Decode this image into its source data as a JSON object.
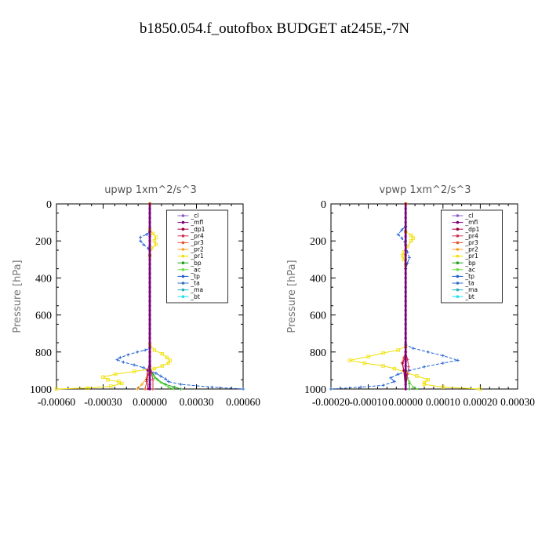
{
  "title": "b1850.054.f_outofbox  BUDGET at245E,-7N",
  "legend_entries": [
    "_cl",
    "_mfl",
    "_dp1",
    "_pr4",
    "_pr3",
    "_pr2",
    "_pr1",
    "_bp",
    "_ac",
    "_tp",
    "_ta",
    "_ma",
    "_bt"
  ],
  "legend_colors": [
    "#8a5cc8",
    "#7a007a",
    "#a00040",
    "#d03050",
    "#e85030",
    "#ffa020",
    "#f0e000",
    "#20a020",
    "#60e040",
    "#2060d0",
    "#3070c0",
    "#20b0c0",
    "#20e0f0"
  ],
  "chart_data": [
    {
      "type": "line",
      "title": "upwp   1xm^2/s^3",
      "ylabel": "Pressure [hPa]",
      "xlabel": "",
      "xlim": [
        -0.0006,
        0.0006
      ],
      "ylim": [
        1000,
        0
      ],
      "xticks": [
        "-0.00060",
        "-0.00030",
        "0.00000",
        "0.00030",
        "0.00060"
      ],
      "yticks": [
        "0",
        "200",
        "400",
        "600",
        "800",
        "1000"
      ],
      "xtick_values": [
        -0.0006,
        -0.0003,
        0,
        0.0003,
        0.0006
      ],
      "ytick_values": [
        0,
        200,
        400,
        600,
        800,
        1000
      ],
      "legend_position": "top-right",
      "series": [
        {
          "name": "_pr1",
          "color": "#f0e000",
          "marker": "square",
          "points": [
            [
              0,
              0
            ],
            [
              0,
              140
            ],
            [
              2e-05,
              160
            ],
            [
              4e-05,
              180
            ],
            [
              3e-05,
              200
            ],
            [
              4e-05,
              220
            ],
            [
              1e-05,
              240
            ],
            [
              0,
              280
            ],
            [
              0,
              760
            ],
            [
              3e-05,
              790
            ],
            [
              8e-05,
              810
            ],
            [
              0.00011,
              830
            ],
            [
              0.00013,
              845
            ],
            [
              0.00012,
              860
            ],
            [
              8e-05,
              875
            ],
            [
              3e-05,
              890
            ],
            [
              -0.0001,
              905
            ],
            [
              -0.00022,
              920
            ],
            [
              -0.0003,
              935
            ],
            [
              -0.00027,
              950
            ],
            [
              -0.0002,
              960
            ],
            [
              -0.00018,
              970
            ],
            [
              -0.00025,
              985
            ],
            [
              -0.0004,
              995
            ],
            [
              -0.0006,
              1000
            ]
          ]
        },
        {
          "name": "_tp",
          "color": "#2060d0",
          "marker": "plus",
          "points": [
            [
              0,
              0
            ],
            [
              0,
              150
            ],
            [
              -2e-05,
              165
            ],
            [
              -6e-05,
              180
            ],
            [
              -6e-05,
              200
            ],
            [
              -4e-05,
              220
            ],
            [
              -1e-05,
              240
            ],
            [
              0,
              280
            ],
            [
              0,
              780
            ],
            [
              -3e-05,
              790
            ],
            [
              -8e-05,
              800
            ],
            [
              -0.00014,
              815
            ],
            [
              -0.00019,
              830
            ],
            [
              -0.00021,
              842
            ],
            [
              -0.00017,
              855
            ],
            [
              -0.0001,
              870
            ],
            [
              -4e-05,
              885
            ],
            [
              0,
              900
            ],
            [
              4e-05,
              915
            ],
            [
              7e-05,
              930
            ],
            [
              0.0001,
              945
            ],
            [
              0.00012,
              960
            ],
            [
              0.0002,
              975
            ],
            [
              0.0004,
              990
            ],
            [
              0.0006,
              1000
            ]
          ]
        },
        {
          "name": "_bp",
          "color": "#20a020",
          "marker": "plus",
          "points": [
            [
              0,
              0
            ],
            [
              0,
              880
            ],
            [
              2e-05,
              920
            ],
            [
              5e-05,
              950
            ],
            [
              0.0001,
              975
            ],
            [
              0.00016,
              990
            ],
            [
              0.0002,
              1000
            ]
          ]
        },
        {
          "name": "_ac",
          "color": "#60e040",
          "marker": "dot",
          "points": [
            [
              0,
              0
            ],
            [
              0,
              900
            ],
            [
              3e-05,
              940
            ],
            [
              7e-05,
              965
            ],
            [
              0.00012,
              990
            ],
            [
              0.00015,
              1000
            ]
          ]
        },
        {
          "name": "_pr2",
          "color": "#ffa020",
          "marker": "plus",
          "points": [
            [
              0,
              0
            ],
            [
              0,
              900
            ],
            [
              -2e-05,
              940
            ],
            [
              -5e-05,
              975
            ],
            [
              -8e-05,
              1000
            ]
          ]
        },
        {
          "name": "_pr3",
          "color": "#e85030",
          "marker": "plus",
          "points": [
            [
              0,
              0
            ],
            [
              0,
              880
            ],
            [
              -1e-05,
              920
            ],
            [
              -2e-05,
              960
            ],
            [
              -3e-05,
              1000
            ]
          ]
        },
        {
          "name": "_pr4",
          "color": "#d03050",
          "marker": "plus",
          "points": [
            [
              0,
              0
            ],
            [
              0,
              870
            ],
            [
              1e-05,
              910
            ],
            [
              2e-05,
              950
            ],
            [
              2e-05,
              1000
            ]
          ]
        },
        {
          "name": "_dp1",
          "color": "#a00040",
          "marker": "dot",
          "points": [
            [
              0,
              0
            ],
            [
              0,
              860
            ],
            [
              -1.5e-05,
              900
            ],
            [
              -2e-05,
              950
            ],
            [
              -1e-05,
              1000
            ]
          ]
        },
        {
          "name": "_cl",
          "color": "#8a5cc8",
          "marker": "dot",
          "points": [
            [
              0,
              0
            ],
            [
              0,
              1000
            ]
          ]
        },
        {
          "name": "_mfl",
          "color": "#7a007a",
          "marker": "dot",
          "points": [
            [
              0,
              0
            ],
            [
              0,
              1000
            ]
          ]
        }
      ]
    },
    {
      "type": "line",
      "title": "vpwp   1xm^2/s^3",
      "ylabel": "Pressure [hPa]",
      "xlabel": "",
      "xlim": [
        -0.0002,
        0.0003
      ],
      "ylim": [
        1000,
        0
      ],
      "xticks": [
        "-0.00020",
        "-0.00010",
        "0.00000",
        "0.00010",
        "0.00020",
        "0.00030"
      ],
      "yticks": [
        "0",
        "200",
        "400",
        "600",
        "800",
        "1000"
      ],
      "xtick_values": [
        -0.0002,
        -0.0001,
        0,
        0.0001,
        0.0002,
        0.0003
      ],
      "ytick_values": [
        0,
        200,
        400,
        600,
        800,
        1000
      ],
      "legend_position": "top-right",
      "series": [
        {
          "name": "_pr1",
          "color": "#f0e000",
          "marker": "square",
          "points": [
            [
              0,
              0
            ],
            [
              0,
              150
            ],
            [
              1.5e-05,
              170
            ],
            [
              2e-05,
              185
            ],
            [
              1.5e-05,
              200
            ],
            [
              5e-06,
              230
            ],
            [
              -5e-06,
              260
            ],
            [
              -8e-06,
              280
            ],
            [
              -5e-06,
              300
            ],
            [
              0,
              330
            ],
            [
              0,
              770
            ],
            [
              -2e-05,
              790
            ],
            [
              -6e-05,
              805
            ],
            [
              -0.0001,
              825
            ],
            [
              -0.00015,
              845
            ],
            [
              -0.00011,
              860
            ],
            [
              -6e-05,
              875
            ],
            [
              -3e-05,
              890
            ],
            [
              0,
              910
            ],
            [
              3e-05,
              930
            ],
            [
              6e-05,
              950
            ],
            [
              5e-05,
              965
            ],
            [
              5e-05,
              975
            ],
            [
              0.0001,
              990
            ],
            [
              0.0002,
              1000
            ]
          ]
        },
        {
          "name": "_tp",
          "color": "#2060d0",
          "marker": "plus",
          "points": [
            [
              0,
              0
            ],
            [
              0,
              120
            ],
            [
              -1e-05,
              140
            ],
            [
              -2e-05,
              165
            ],
            [
              -1e-05,
              185
            ],
            [
              0,
              220
            ],
            [
              5e-06,
              260
            ],
            [
              1e-05,
              290
            ],
            [
              5e-06,
              320
            ],
            [
              0,
              350
            ],
            [
              0,
              760
            ],
            [
              2e-05,
              780
            ],
            [
              6e-05,
              800
            ],
            [
              0.0001,
              820
            ],
            [
              0.00014,
              845
            ],
            [
              0.0001,
              860
            ],
            [
              5e-05,
              880
            ],
            [
              1e-05,
              900
            ],
            [
              -2e-05,
              920
            ],
            [
              -4e-05,
              940
            ],
            [
              -3e-05,
              960
            ],
            [
              -6e-05,
              980
            ],
            [
              -0.00012,
              990
            ],
            [
              -0.0002,
              1000
            ]
          ]
        },
        {
          "name": "_bp",
          "color": "#20a020",
          "marker": "plus",
          "points": [
            [
              0,
              0
            ],
            [
              0,
              900
            ],
            [
              5e-06,
              940
            ],
            [
              1e-05,
              970
            ],
            [
              1e-05,
              1000
            ]
          ]
        },
        {
          "name": "_ac",
          "color": "#60e040",
          "marker": "dot",
          "points": [
            [
              0,
              0
            ],
            [
              0,
              920
            ],
            [
              1e-05,
              960
            ],
            [
              2e-05,
              990
            ],
            [
              3e-05,
              1000
            ]
          ]
        },
        {
          "name": "_pr3",
          "color": "#e85030",
          "marker": "plus",
          "points": [
            [
              0,
              0
            ],
            [
              0,
              800
            ],
            [
              -5e-06,
              830
            ],
            [
              -1e-05,
              860
            ],
            [
              -5e-06,
              900
            ],
            [
              0,
              950
            ],
            [
              0,
              1000
            ]
          ]
        },
        {
          "name": "_pr4",
          "color": "#d03050",
          "marker": "plus",
          "points": [
            [
              0,
              0
            ],
            [
              0,
              800
            ],
            [
              5e-06,
              840
            ],
            [
              8e-06,
              880
            ],
            [
              5e-06,
              920
            ],
            [
              0,
              1000
            ]
          ]
        },
        {
          "name": "_dp1",
          "color": "#a00040",
          "marker": "dot",
          "points": [
            [
              0,
              0
            ],
            [
              0,
              820
            ],
            [
              -8e-06,
              860
            ],
            [
              -5e-06,
              900
            ],
            [
              0,
              1000
            ]
          ]
        },
        {
          "name": "_cl",
          "color": "#8a5cc8",
          "marker": "dot",
          "points": [
            [
              0,
              0
            ],
            [
              0,
              1000
            ]
          ]
        },
        {
          "name": "_mfl",
          "color": "#7a007a",
          "marker": "dot",
          "points": [
            [
              0,
              0
            ],
            [
              0,
              1000
            ]
          ]
        }
      ]
    }
  ]
}
